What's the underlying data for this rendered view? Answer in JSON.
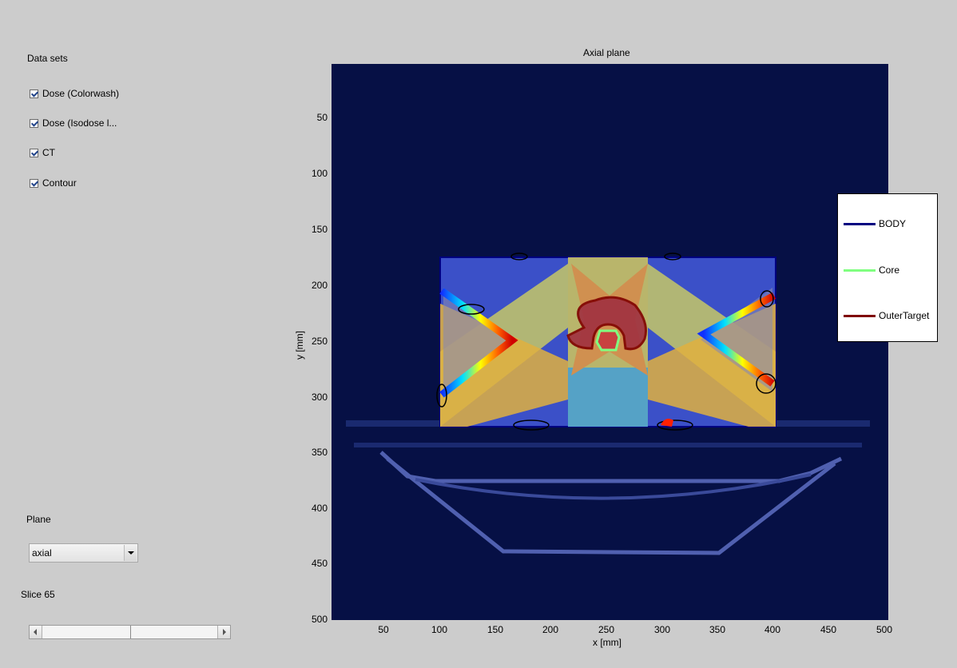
{
  "left_panel": {
    "datasets_label": "Data sets",
    "checkboxes": [
      {
        "label": "Dose (Colorwash)",
        "checked": true
      },
      {
        "label": "Dose (Isodose l...",
        "checked": true
      },
      {
        "label": "CT",
        "checked": true
      },
      {
        "label": "Contour",
        "checked": true
      }
    ],
    "plane_label": "Plane",
    "plane_select_value": "axial",
    "slice_label": "Slice 65",
    "slider_value_fraction": 0.5
  },
  "plot": {
    "title": "Axial plane",
    "xlabel": "x [mm]",
    "ylabel": "y [mm]",
    "xticks": [
      "50",
      "100",
      "150",
      "200",
      "250",
      "300",
      "350",
      "400",
      "450",
      "500"
    ],
    "yticks": [
      "50",
      "100",
      "150",
      "200",
      "250",
      "300",
      "350",
      "400",
      "450",
      "500"
    ],
    "legend": [
      {
        "name": "BODY",
        "color": "#000080"
      },
      {
        "name": "Core",
        "color": "#80ff80"
      },
      {
        "name": "OuterTarget",
        "color": "#800000"
      }
    ]
  }
}
